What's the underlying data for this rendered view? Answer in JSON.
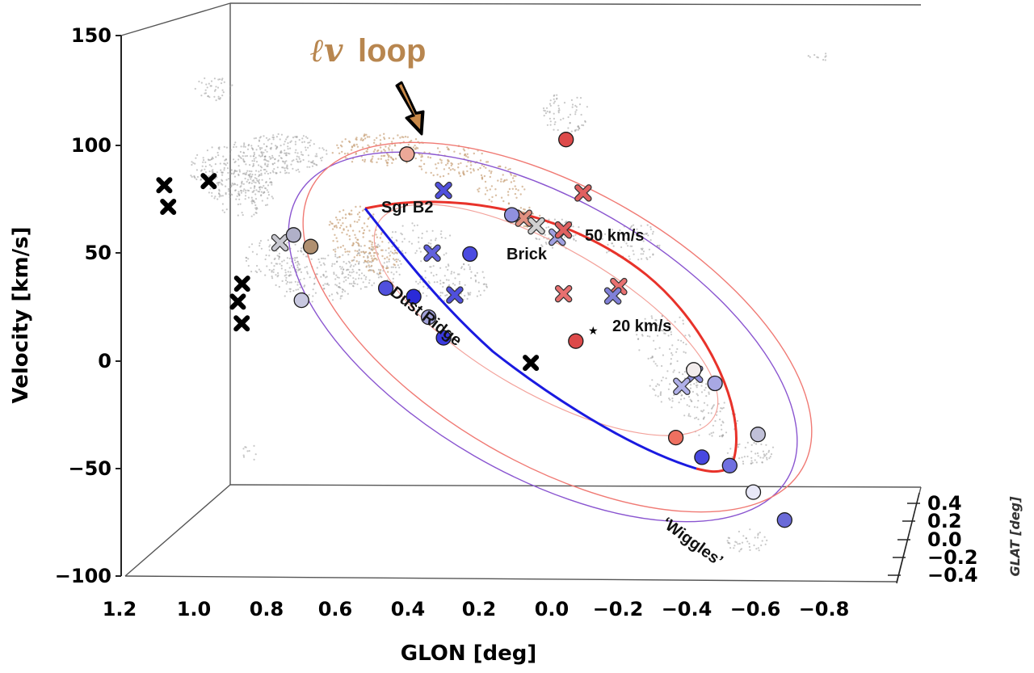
{
  "chart_data": {
    "type": "scatter3d",
    "xlabel": "GLON [deg]",
    "ylabel": "Velocity [km/s]",
    "zlabel": "GLAT [deg]",
    "xlim": [
      1.2,
      -0.9
    ],
    "ylim": [
      -100,
      150
    ],
    "zlim": [
      -0.4,
      0.4
    ],
    "x_ticks": [
      "1.2",
      "1.0",
      "0.8",
      "0.6",
      "0.4",
      "0.2",
      "0.0",
      "−0.2",
      "−0.4",
      "−0.6",
      "−0.8"
    ],
    "y_ticks": [
      "150",
      "100",
      "50",
      "0",
      "−50",
      "−100"
    ],
    "z_ticks": [
      "0.4",
      "0.2",
      "0.0",
      "−0.2",
      "−0.4"
    ],
    "annotations": {
      "loop_prefix": "ℓv",
      "loop_word": "loop",
      "sgrb2": "Sgr B2",
      "brick": "Brick",
      "kms50": "50 km/s",
      "kms20": "20 km/s",
      "dust_ridge": "Dust Ridge",
      "wiggles": "‘Wiggles’"
    },
    "colors": {
      "loop": "#b8864f",
      "blue_curve": "#1a1ae0",
      "red_curve": "#e8322a",
      "outer_ellipse_purple": "#8a55d0",
      "outer_ellipse_red": "#f07a74",
      "gray_cloud": "#9a9a9a",
      "tan_cloud": "#c9a37a"
    },
    "circle_markers": [
      {
        "glon": 0.62,
        "v": 68,
        "color": "#b0b0c8"
      },
      {
        "glon": 0.58,
        "v": 62,
        "color": "#b09070"
      },
      {
        "glon": 0.63,
        "v": 38,
        "color": "#c8c8e0"
      },
      {
        "glon": 0.4,
        "v": 40,
        "color": "#5050dd"
      },
      {
        "glon": 0.33,
        "v": 35,
        "color": "#2a2ad8"
      },
      {
        "glon": 0.3,
        "v": 25,
        "color": "#a0a0d8"
      },
      {
        "glon": 0.27,
        "v": 15,
        "color": "#3a3ae0"
      },
      {
        "glon": 0.28,
        "v": 100,
        "color": "#eca898"
      },
      {
        "glon": 0.16,
        "v": 52,
        "color": "#4a4ae0"
      },
      {
        "glon": 0.03,
        "v": 68,
        "color": "#9090dd"
      },
      {
        "glon": -0.15,
        "v": 100,
        "color": "#dd4a4a"
      },
      {
        "glon": -0.08,
        "v": 8,
        "color": "#dd4a4a"
      },
      {
        "glon": -0.3,
        "v": -40,
        "color": "#ee7060"
      },
      {
        "glon": -0.38,
        "v": -10,
        "color": "#f2ecec"
      },
      {
        "glon": -0.43,
        "v": -17,
        "color": "#a8a8e4"
      },
      {
        "glon": -0.52,
        "v": -42,
        "color": "#c0c0d8"
      },
      {
        "glon": -0.36,
        "v": -50,
        "color": "#4848e0"
      },
      {
        "glon": -0.43,
        "v": -55,
        "color": "#7070e0"
      },
      {
        "glon": -0.48,
        "v": -68,
        "color": "#e8e8f8"
      },
      {
        "glon": -0.55,
        "v": -82,
        "color": "#6a6ad8"
      }
    ],
    "x_markers": [
      {
        "glon": 0.94,
        "v": 96,
        "color": "#000000"
      },
      {
        "glon": 0.94,
        "v": 86,
        "color": "#000000"
      },
      {
        "glon": 0.82,
        "v": 96,
        "color": "#000000"
      },
      {
        "glon": 0.78,
        "v": 48,
        "color": "#000000"
      },
      {
        "glon": 0.8,
        "v": 40,
        "color": "#000000"
      },
      {
        "glon": 0.8,
        "v": 30,
        "color": "#000000"
      },
      {
        "glon": 0.66,
        "v": 65,
        "color": "#c8c8d0"
      },
      {
        "glon": 0.05,
        "v": 0,
        "color": "#000000"
      },
      {
        "glon": 0.26,
        "v": 54,
        "color": "#6060dd"
      },
      {
        "glon": 0.2,
        "v": 82,
        "color": "#5050dd"
      },
      {
        "glon": 0.22,
        "v": 34,
        "color": "#5050dd"
      },
      {
        "glon": 0.0,
        "v": 66,
        "color": "#e09080"
      },
      {
        "glon": -0.03,
        "v": 62,
        "color": "#d0d0d0"
      },
      {
        "glon": -0.08,
        "v": 56,
        "color": "#a0a0e0"
      },
      {
        "glon": -0.1,
        "v": 59,
        "color": "#e06060"
      },
      {
        "glon": -0.17,
        "v": 75,
        "color": "#e06060"
      },
      {
        "glon": -0.07,
        "v": 30,
        "color": "#e87070"
      },
      {
        "glon": -0.22,
        "v": 31,
        "color": "#e87070"
      },
      {
        "glon": -0.2,
        "v": 27,
        "color": "#8080d8"
      },
      {
        "glon": -0.38,
        "v": -12,
        "color": "#9090dd"
      },
      {
        "glon": -0.34,
        "v": -17,
        "color": "#b0b0e8"
      }
    ]
  }
}
